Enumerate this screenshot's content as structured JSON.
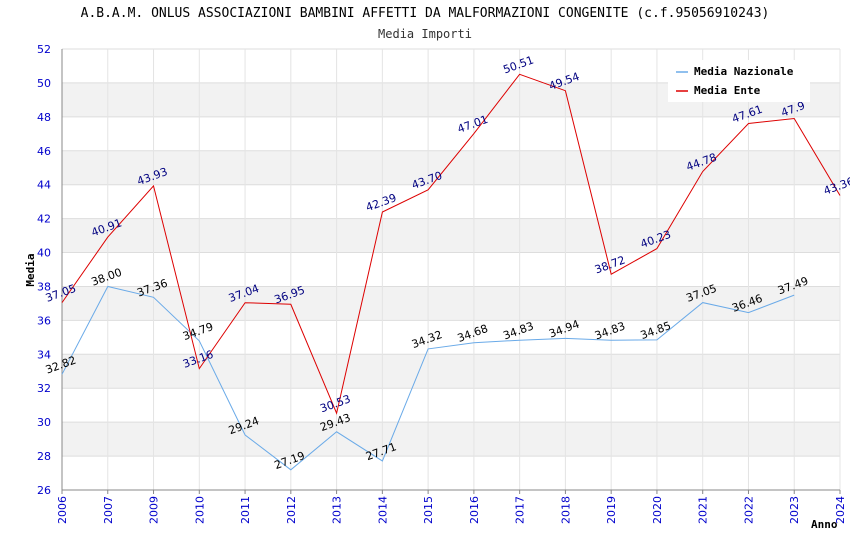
{
  "title": "A.B.A.M. ONLUS ASSOCIAZIONI BAMBINI AFFETTI DA MALFORMAZIONI CONGENITE (c.f.95056910243)",
  "subtitle": "Media Importi",
  "chart_data": {
    "type": "line",
    "title": "A.B.A.M. ONLUS ASSOCIAZIONI BAMBINI AFFETTI DA MALFORMAZIONI CONGENITE (c.f.95056910243)",
    "subtitle": "Media Importi",
    "xlabel": "Anno",
    "ylabel": "Media",
    "categories": [
      "2006",
      "2007",
      "2009",
      "2010",
      "2011",
      "2012",
      "2013",
      "2014",
      "2015",
      "2016",
      "2017",
      "2018",
      "2019",
      "2020",
      "2021",
      "2022",
      "2023",
      "2024"
    ],
    "ylim": [
      26,
      52
    ],
    "yticks": [
      26,
      28,
      30,
      32,
      34,
      36,
      38,
      40,
      42,
      44,
      46,
      48,
      50,
      52
    ],
    "grid": true,
    "legend_position": "top-right",
    "series": [
      {
        "name": "Media Nazionale",
        "color": "#6aaae8",
        "values": [
          32.82,
          38.0,
          37.36,
          34.79,
          29.24,
          27.19,
          29.43,
          27.71,
          34.32,
          34.68,
          34.83,
          34.94,
          34.83,
          34.85,
          37.05,
          36.46,
          37.49,
          null
        ],
        "labels": [
          "32.82",
          "38.00",
          "37.36",
          "34.79",
          "29.24",
          "27.19",
          "29.43",
          "27.71",
          "34.32",
          "34.68",
          "34.83",
          "34.94",
          "34.83",
          "34.85",
          "37.05",
          "36.46",
          "37.49",
          ""
        ]
      },
      {
        "name": "Media Ente",
        "color": "#dd0000",
        "values": [
          37.05,
          40.91,
          43.93,
          33.16,
          37.04,
          36.95,
          30.53,
          42.39,
          43.7,
          47.01,
          50.51,
          49.54,
          38.72,
          40.23,
          44.78,
          47.61,
          47.9,
          43.36
        ],
        "labels": [
          "37.05",
          "40.91",
          "43.93",
          "33.16",
          "37.04",
          "36.95",
          "30.53",
          "42.39",
          "43.70",
          "47.01",
          "50.51",
          "49.54",
          "38.72",
          "40.23",
          "44.78",
          "47.61",
          "47.9",
          "43.36"
        ]
      }
    ]
  }
}
